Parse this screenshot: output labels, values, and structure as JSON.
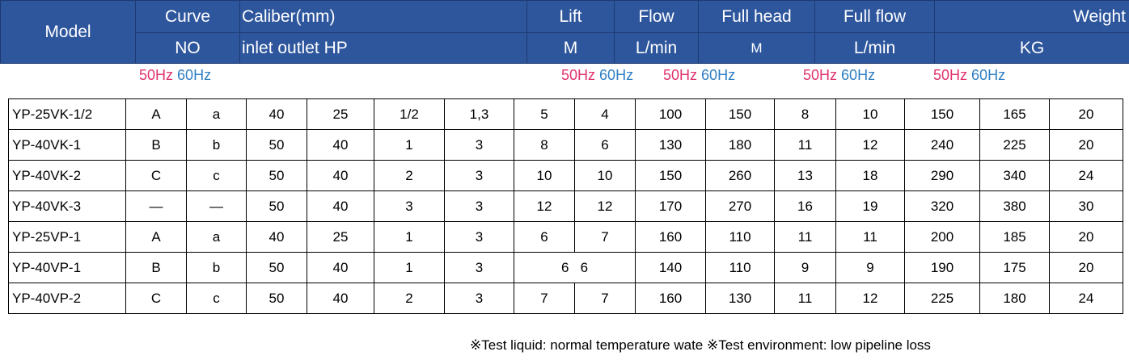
{
  "header": {
    "model": "Model",
    "curve_top": "Curve",
    "curve_bottom": "NO",
    "caliber_top": "Caliber(mm)",
    "caliber_bottom": "inlet outlet HP",
    "lift_top": "Lift",
    "lift_bottom": "M",
    "flow_top": "Flow",
    "flow_bottom": "L/min",
    "fullhead_top": "Full head",
    "fullhead_bottom": "M",
    "fullflow_top": "Full flow",
    "fullflow_bottom": "L/min",
    "weight_top": "Weight",
    "weight_bottom": "KG"
  },
  "freq_labels": {
    "hz50": "50Hz",
    "hz60": "60Hz"
  },
  "colors": {
    "header_bg": "#2e569d",
    "hz50": "#e0336b",
    "hz60": "#2f7fc4"
  },
  "rows": [
    {
      "model": "YP-25VK-1/2",
      "curve_a": "A",
      "curve_b": "a",
      "inlet": "40",
      "outlet": "25",
      "hp_a": "1/2",
      "hp_b": "1,3",
      "lift_50": "5",
      "lift_60": "4",
      "flow_50": "100",
      "flow_60": "150",
      "head_50": "8",
      "head_60": "10",
      "fflow_50": "150",
      "fflow_60": "165",
      "weight": "20"
    },
    {
      "model": "YP-40VK-1",
      "curve_a": "B",
      "curve_b": "b",
      "inlet": "50",
      "outlet": "40",
      "hp_a": "1",
      "hp_b": "3",
      "lift_50": "8",
      "lift_60": "6",
      "flow_50": "130",
      "flow_60": "180",
      "head_50": "11",
      "head_60": "12",
      "fflow_50": "240",
      "fflow_60": "225",
      "weight": "20"
    },
    {
      "model": "YP-40VK-2",
      "curve_a": "C",
      "curve_b": "c",
      "inlet": "50",
      "outlet": "40",
      "hp_a": "2",
      "hp_b": "3",
      "lift_50": "10",
      "lift_60": "10",
      "flow_50": "150",
      "flow_60": "260",
      "head_50": "13",
      "head_60": "18",
      "fflow_50": "290",
      "fflow_60": "340",
      "weight": "24"
    },
    {
      "model": "YP-40VK-3",
      "curve_a": "—",
      "curve_b": "—",
      "inlet": "50",
      "outlet": "40",
      "hp_a": "3",
      "hp_b": "3",
      "lift_50": "12",
      "lift_60": "12",
      "flow_50": "170",
      "flow_60": "270",
      "head_50": "16",
      "head_60": "19",
      "fflow_50": "320",
      "fflow_60": "380",
      "weight": "30"
    },
    {
      "model": "YP-25VP-1",
      "curve_a": "A",
      "curve_b": "a",
      "inlet": "40",
      "outlet": "25",
      "hp_a": "1",
      "hp_b": "3",
      "lift_50": "6",
      "lift_60": "7",
      "flow_50": "160",
      "flow_60": "110",
      "head_50": "11",
      "head_60": "11",
      "fflow_50": "200",
      "fflow_60": "185",
      "weight": "20"
    },
    {
      "model": "YP-40VP-1",
      "curve_a": "B",
      "curve_b": "b",
      "inlet": "50",
      "outlet": "40",
      "hp_a": "1",
      "hp_b": "3",
      "lift_merged": "6   6",
      "flow_50": "140",
      "flow_60": "110",
      "head_50": "9",
      "head_60": "9",
      "fflow_50": "190",
      "fflow_60": "175",
      "weight": "20"
    },
    {
      "model": "YP-40VP-2",
      "curve_a": "C",
      "curve_b": "c",
      "inlet": "50",
      "outlet": "40",
      "hp_a": "2",
      "hp_b": "3",
      "lift_50": "7",
      "lift_60": "7",
      "flow_50": "160",
      "flow_60": "130",
      "head_50": "11",
      "head_60": "12",
      "fflow_50": "225",
      "fflow_60": "180",
      "weight": "24"
    }
  ],
  "footer": {
    "note1": "※Test liquid: normal temperature wate",
    "note2": "※Test environment: low pipeline loss"
  }
}
